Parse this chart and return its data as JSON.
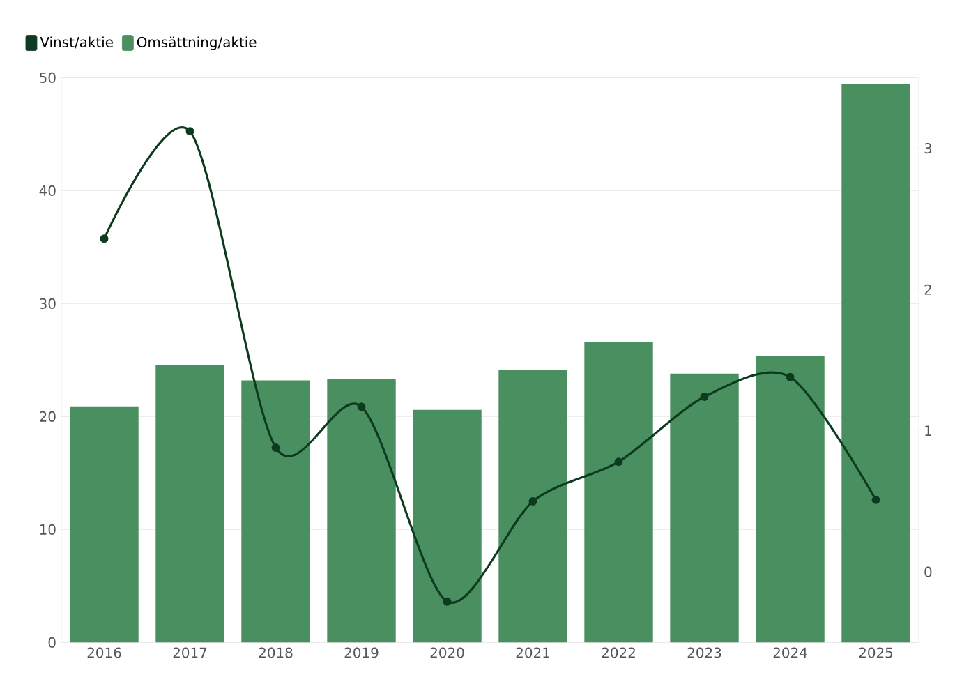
{
  "chart_data": {
    "type": "bar",
    "categories": [
      "2016",
      "2017",
      "2018",
      "2019",
      "2020",
      "2021",
      "2022",
      "2023",
      "2024",
      "2025"
    ],
    "series": [
      {
        "name": "Vinst/aktie",
        "type": "line",
        "axis": "y2",
        "color": "#0d3b1f",
        "values": [
          2.36,
          3.12,
          0.88,
          1.17,
          -0.21,
          0.5,
          0.78,
          1.24,
          1.38,
          0.51
        ]
      },
      {
        "name": "Omsättning/aktie",
        "color": "#4a8f5f",
        "values": [
          20.9,
          24.6,
          23.2,
          23.3,
          20.6,
          24.1,
          26.6,
          23.8,
          25.4,
          49.4
        ]
      }
    ],
    "ylim": [
      0,
      50
    ],
    "yticks": [
      0,
      10,
      20,
      30,
      40,
      50
    ],
    "y2lim": [
      -0.5,
      3.5
    ],
    "y2ticks": [
      0,
      1,
      2,
      3
    ],
    "grid": "y",
    "legend": "top left",
    "marker": "circle",
    "line_style": "solid"
  }
}
